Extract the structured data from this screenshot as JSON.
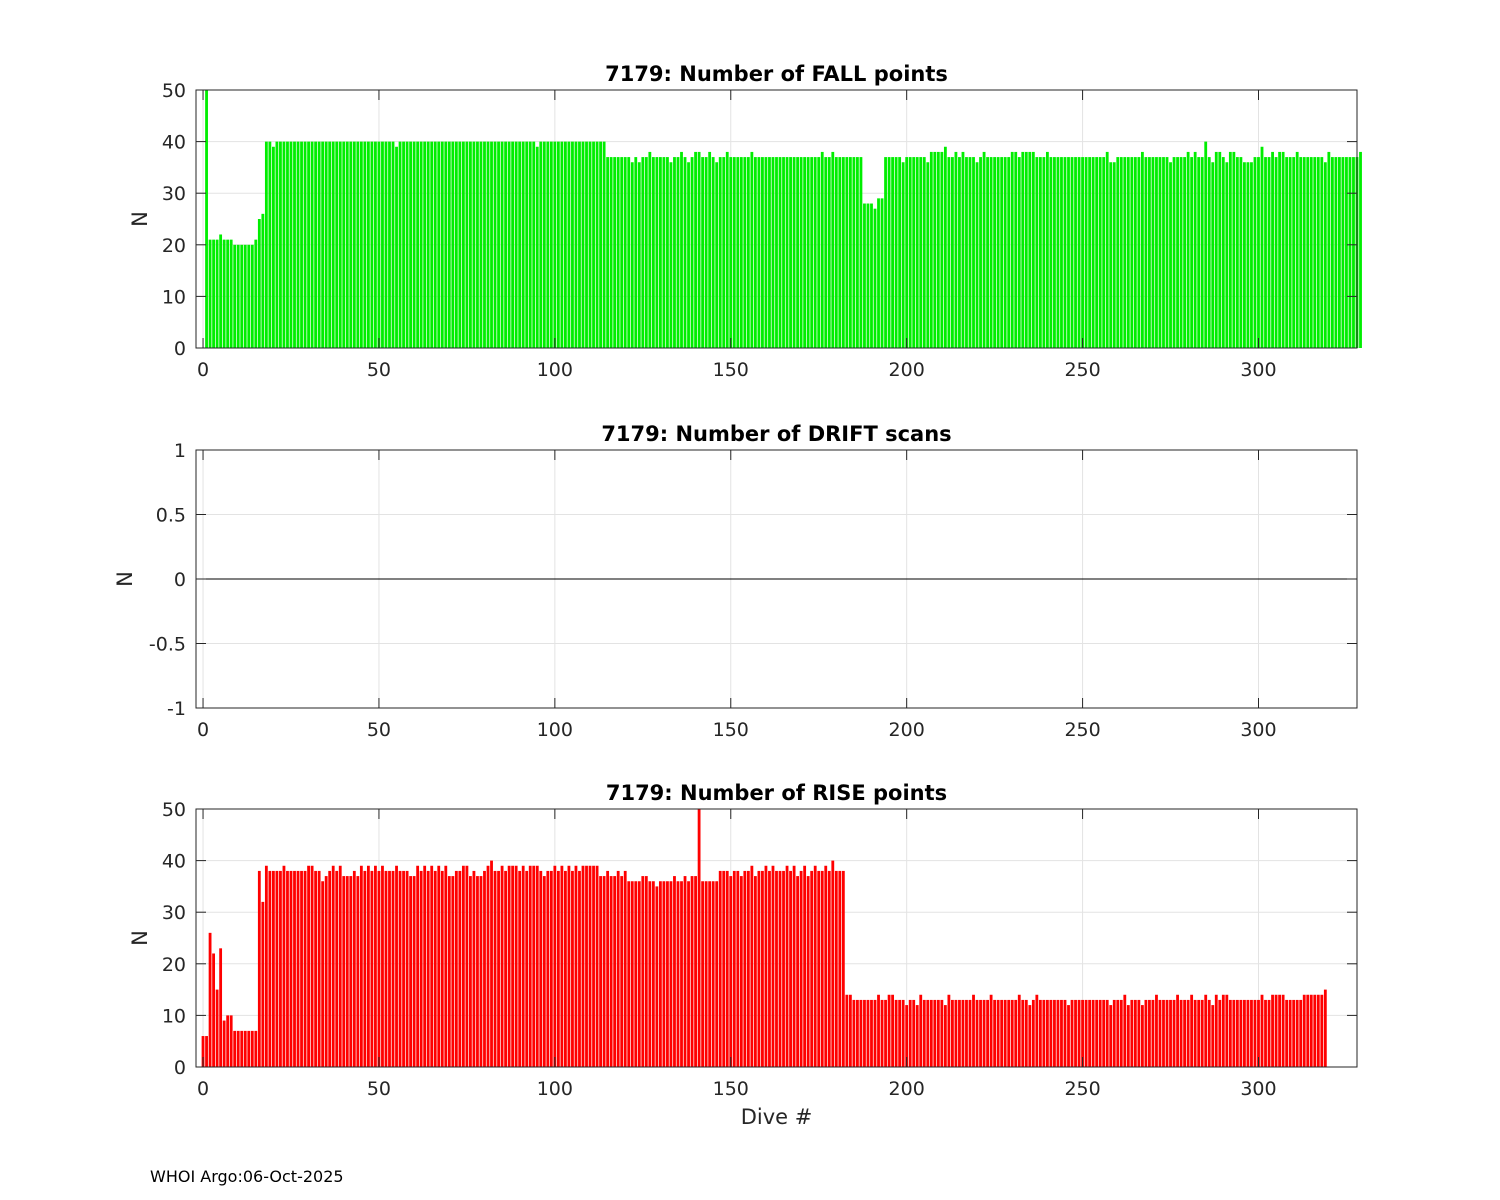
{
  "footer": "WHOI Argo:06-Oct-2025",
  "chart_data": [
    {
      "type": "bar",
      "title": "7179: Number of FALL points",
      "ylabel": "N",
      "xlabel": "",
      "xlim": [
        -2,
        328
      ],
      "ylim": [
        0,
        50
      ],
      "xticks": [
        0,
        50,
        100,
        150,
        200,
        250,
        300
      ],
      "yticks": [
        0,
        10,
        20,
        30,
        40,
        50
      ],
      "ytick_labels": [
        "0",
        "10",
        "20",
        "30",
        "40",
        "50"
      ],
      "grid": true,
      "color": "#00ee00",
      "x_start": 1,
      "values": [
        50,
        21,
        21,
        21,
        22,
        21,
        21,
        21,
        20,
        20,
        20,
        20,
        20,
        20,
        21,
        25,
        26,
        40,
        40,
        39,
        40,
        40,
        40,
        40,
        40,
        40,
        40,
        40,
        40,
        40,
        40,
        40,
        40,
        40,
        40,
        40,
        40,
        40,
        40,
        40,
        40,
        40,
        40,
        40,
        40,
        40,
        40,
        40,
        40,
        40,
        40,
        40,
        40,
        40,
        39,
        40,
        40,
        40,
        40,
        40,
        40,
        40,
        40,
        40,
        40,
        40,
        40,
        40,
        40,
        40,
        40,
        40,
        40,
        40,
        40,
        40,
        40,
        40,
        40,
        40,
        40,
        40,
        40,
        40,
        40,
        40,
        40,
        40,
        40,
        40,
        40,
        40,
        40,
        40,
        39,
        40,
        40,
        40,
        40,
        40,
        40,
        40,
        40,
        40,
        40,
        40,
        40,
        40,
        40,
        40,
        40,
        40,
        40,
        40,
        37,
        37,
        37,
        37,
        37,
        37,
        37,
        36,
        37,
        36,
        37,
        37,
        38,
        37,
        37,
        37,
        37,
        37,
        36,
        37,
        37,
        38,
        37,
        36,
        37,
        38,
        38,
        37,
        37,
        38,
        37,
        36,
        37,
        37,
        38,
        37,
        37,
        37,
        37,
        37,
        37,
        38,
        37,
        37,
        37,
        37,
        37,
        37,
        37,
        37,
        37,
        37,
        37,
        37,
        37,
        37,
        37,
        37,
        37,
        37,
        37,
        38,
        37,
        37,
        38,
        37,
        37,
        37,
        37,
        37,
        37,
        37,
        37,
        28,
        28,
        28,
        27,
        29,
        29,
        37,
        37,
        37,
        37,
        37,
        36,
        37,
        37,
        37,
        37,
        37,
        37,
        36,
        38,
        38,
        38,
        38,
        39,
        37,
        37,
        38,
        37,
        38,
        37,
        37,
        37,
        36,
        37,
        38,
        37,
        37,
        37,
        37,
        37,
        37,
        37,
        38,
        38,
        37,
        38,
        38,
        38,
        38,
        37,
        37,
        37,
        38,
        37,
        37,
        37,
        37,
        37,
        37,
        37,
        37,
        37,
        37,
        37,
        37,
        37,
        37,
        37,
        37,
        38,
        36,
        36,
        37,
        37,
        37,
        37,
        37,
        37,
        37,
        38,
        37,
        37,
        37,
        37,
        37,
        37,
        37,
        36,
        37,
        37,
        37,
        37,
        38,
        37,
        38,
        37,
        37,
        40,
        37,
        36,
        38,
        38,
        37,
        36,
        38,
        38,
        37,
        37,
        36,
        36,
        36,
        37,
        37,
        39,
        37,
        37,
        38,
        37,
        38,
        38,
        37,
        37,
        37,
        38,
        37,
        37,
        37,
        37,
        37,
        37,
        37,
        36,
        38,
        37,
        37,
        37,
        37,
        37,
        37,
        37,
        37,
        38
      ]
    },
    {
      "type": "bar",
      "title": "7179: Number of DRIFT scans",
      "ylabel": "N",
      "xlabel": "",
      "xlim": [
        -2,
        328
      ],
      "ylim": [
        -1,
        1
      ],
      "xticks": [
        0,
        50,
        100,
        150,
        200,
        250,
        300
      ],
      "yticks": [
        -1,
        -0.5,
        0,
        0.5,
        1
      ],
      "ytick_labels": [
        "-1",
        "-0.5",
        "0",
        "0.5",
        "1"
      ],
      "grid": true,
      "color": "#000000",
      "x_start": 1,
      "values": []
    },
    {
      "type": "bar",
      "title": "7179: Number of RISE points",
      "ylabel": "N",
      "xlabel": "Dive #",
      "xlim": [
        -2,
        328
      ],
      "ylim": [
        0,
        50
      ],
      "xticks": [
        0,
        50,
        100,
        150,
        200,
        250,
        300
      ],
      "yticks": [
        0,
        10,
        20,
        30,
        40,
        50
      ],
      "ytick_labels": [
        "0",
        "10",
        "20",
        "30",
        "40",
        "50"
      ],
      "grid": true,
      "color": "#ff0000",
      "x_start": 0,
      "values": [
        6,
        6,
        26,
        22,
        15,
        23,
        9,
        10,
        10,
        7,
        7,
        7,
        7,
        7,
        7,
        7,
        38,
        32,
        39,
        38,
        38,
        38,
        38,
        39,
        38,
        38,
        38,
        38,
        38,
        38,
        39,
        39,
        38,
        38,
        36,
        37,
        38,
        39,
        38,
        39,
        37,
        37,
        37,
        38,
        37,
        39,
        38,
        39,
        38,
        39,
        38,
        39,
        38,
        38,
        38,
        39,
        38,
        38,
        38,
        37,
        37,
        39,
        38,
        39,
        38,
        39,
        38,
        39,
        38,
        39,
        37,
        37,
        38,
        38,
        39,
        39,
        37,
        38,
        37,
        37,
        38,
        39,
        40,
        38,
        38,
        39,
        38,
        39,
        39,
        39,
        38,
        39,
        38,
        39,
        39,
        39,
        38,
        37,
        38,
        38,
        39,
        38,
        39,
        38,
        39,
        38,
        39,
        38,
        39,
        39,
        39,
        39,
        39,
        37,
        37,
        38,
        37,
        37,
        38,
        37,
        38,
        36,
        36,
        36,
        36,
        37,
        37,
        36,
        36,
        35,
        36,
        36,
        36,
        36,
        37,
        36,
        36,
        37,
        36,
        37,
        37,
        50,
        36,
        36,
        36,
        36,
        36,
        38,
        38,
        38,
        37,
        38,
        38,
        37,
        38,
        38,
        39,
        37,
        38,
        38,
        39,
        38,
        39,
        38,
        38,
        38,
        39,
        38,
        39,
        37,
        38,
        39,
        37,
        38,
        39,
        38,
        38,
        39,
        38,
        40,
        38,
        38,
        38,
        14,
        14,
        13,
        13,
        13,
        13,
        13,
        13,
        13,
        14,
        13,
        13,
        14,
        14,
        13,
        13,
        13,
        12,
        13,
        13,
        12,
        14,
        13,
        13,
        13,
        13,
        13,
        13,
        12,
        14,
        13,
        13,
        13,
        13,
        13,
        13,
        14,
        13,
        13,
        13,
        13,
        14,
        13,
        13,
        13,
        13,
        13,
        13,
        13,
        14,
        13,
        13,
        12,
        13,
        14,
        13,
        13,
        13,
        13,
        13,
        13,
        13,
        13,
        12,
        13,
        13,
        13,
        13,
        13,
        13,
        13,
        13,
        13,
        13,
        13,
        12,
        13,
        13,
        13,
        14,
        12,
        13,
        13,
        13,
        12,
        13,
        13,
        13,
        14,
        13,
        13,
        13,
        13,
        13,
        14,
        13,
        13,
        13,
        14,
        13,
        13,
        13,
        14,
        13,
        12,
        14,
        13,
        14,
        14,
        13,
        13,
        13,
        13,
        13,
        13,
        13,
        13,
        13,
        14,
        13,
        13,
        14,
        14,
        14,
        14,
        13,
        13,
        13,
        13,
        13,
        14,
        14,
        14,
        14,
        14,
        14,
        15
      ]
    }
  ]
}
